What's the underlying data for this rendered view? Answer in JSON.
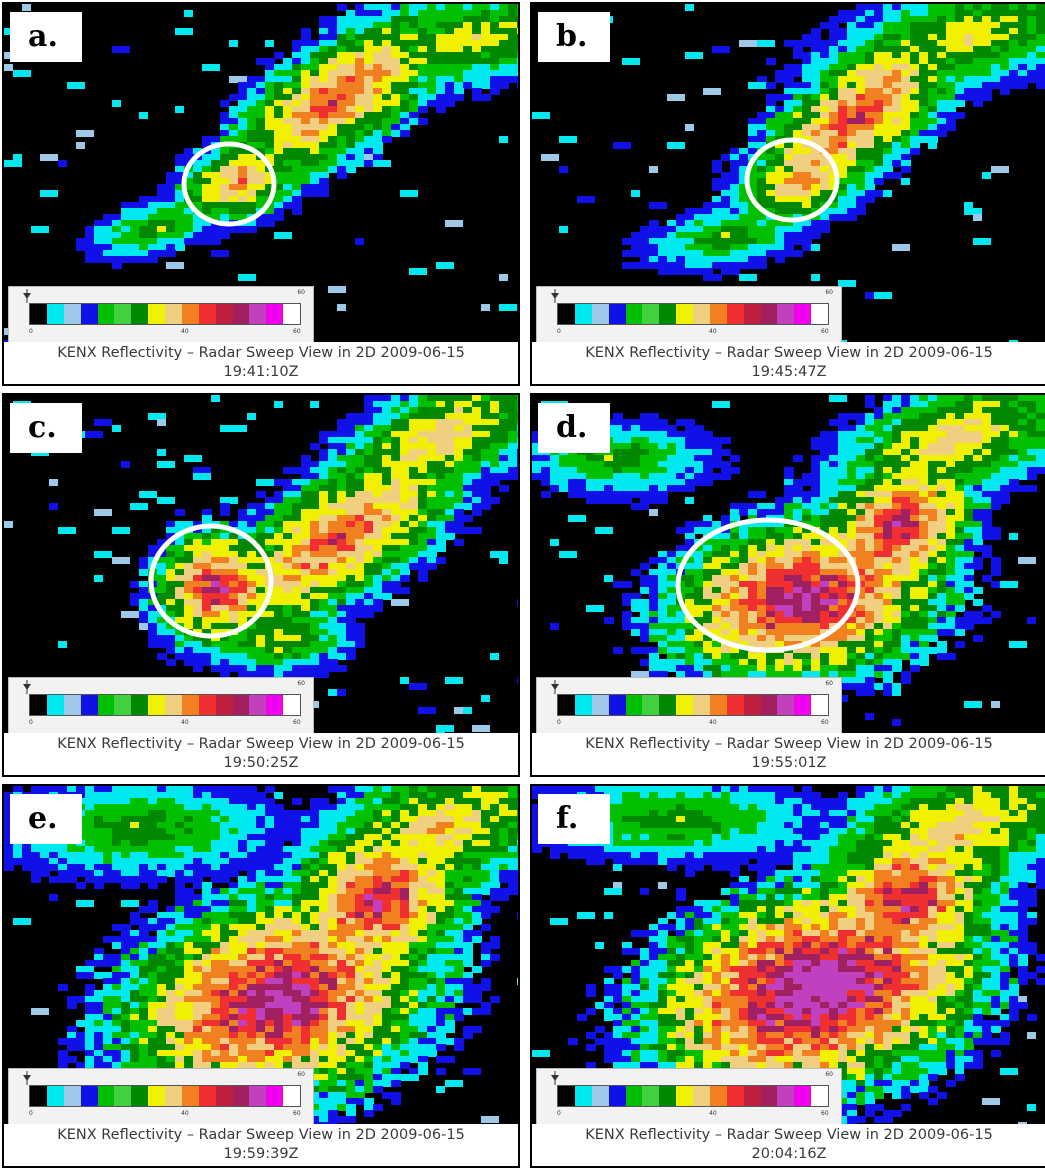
{
  "colorbar": {
    "colors": [
      "#000000",
      "#00e8f0",
      "#9ec8e8",
      "#1010e8",
      "#00c000",
      "#40d040",
      "#008800",
      "#f0f000",
      "#f0d080",
      "#f08020",
      "#f03030",
      "#c02040",
      "#a02060",
      "#c040c0",
      "#f000f0",
      "#ffffff"
    ],
    "tick_min": "0",
    "tick_mid": "40",
    "tick_max": "60",
    "tick_top": "60"
  },
  "panels": [
    {
      "letter": "a.",
      "caption": "KENX Reflectivity – Radar Sweep View in 2D 2009-06-15",
      "time": "19:41:10Z"
    },
    {
      "letter": "b.",
      "caption": "KENX Reflectivity – Radar Sweep View in 2D 2009-06-15",
      "time": "19:45:47Z"
    },
    {
      "letter": "c.",
      "caption": "KENX Reflectivity – Radar Sweep View in 2D 2009-06-15",
      "time": "19:50:25Z"
    },
    {
      "letter": "d.",
      "caption": "KENX Reflectivity – Radar Sweep View in 2D 2009-06-15",
      "time": "19:55:01Z"
    },
    {
      "letter": "e.",
      "caption": "KENX Reflectivity – Radar Sweep View in 2D 2009-06-15",
      "time": "19:59:39Z"
    },
    {
      "letter": "f.",
      "caption": "KENX Reflectivity – Radar Sweep View in 2D 2009-06-15",
      "time": "20:04:16Z"
    }
  ]
}
